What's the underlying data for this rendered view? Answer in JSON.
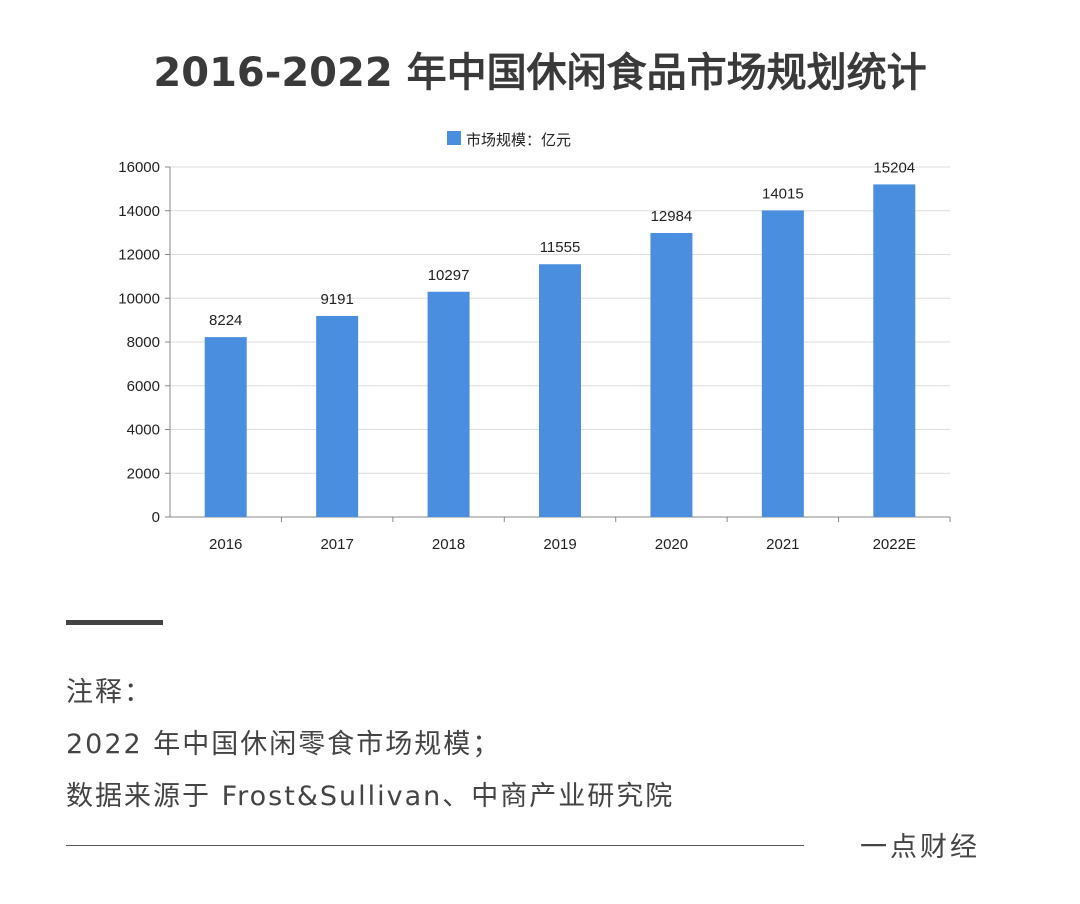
{
  "title": "2016-2022 年中国休闲食品市场规划统计",
  "chart_data": {
    "type": "bar",
    "title": "2016-2022 年中国休闲食品市场规划统计",
    "categories": [
      "2016",
      "2017",
      "2018",
      "2019",
      "2020",
      "2021",
      "2022E"
    ],
    "series": [
      {
        "name": "市场规模：亿元",
        "values": [
          8224,
          9191,
          10297,
          11555,
          12984,
          14015,
          15204
        ]
      }
    ],
    "yticks": [
      "0",
      "2000",
      "4000",
      "6000",
      "8000",
      "10000",
      "12000",
      "14000",
      "16000"
    ],
    "ylim": [
      0,
      16000
    ],
    "legend": "top-center",
    "grid": true,
    "bar_color": "#4a8fdf"
  },
  "notes": {
    "heading": "注释：",
    "line1": "2022 年中国休闲零食市场规模；",
    "line2": "数据来源于 Frost&Sullivan、中商产业研究院"
  },
  "brand": "一点财经"
}
